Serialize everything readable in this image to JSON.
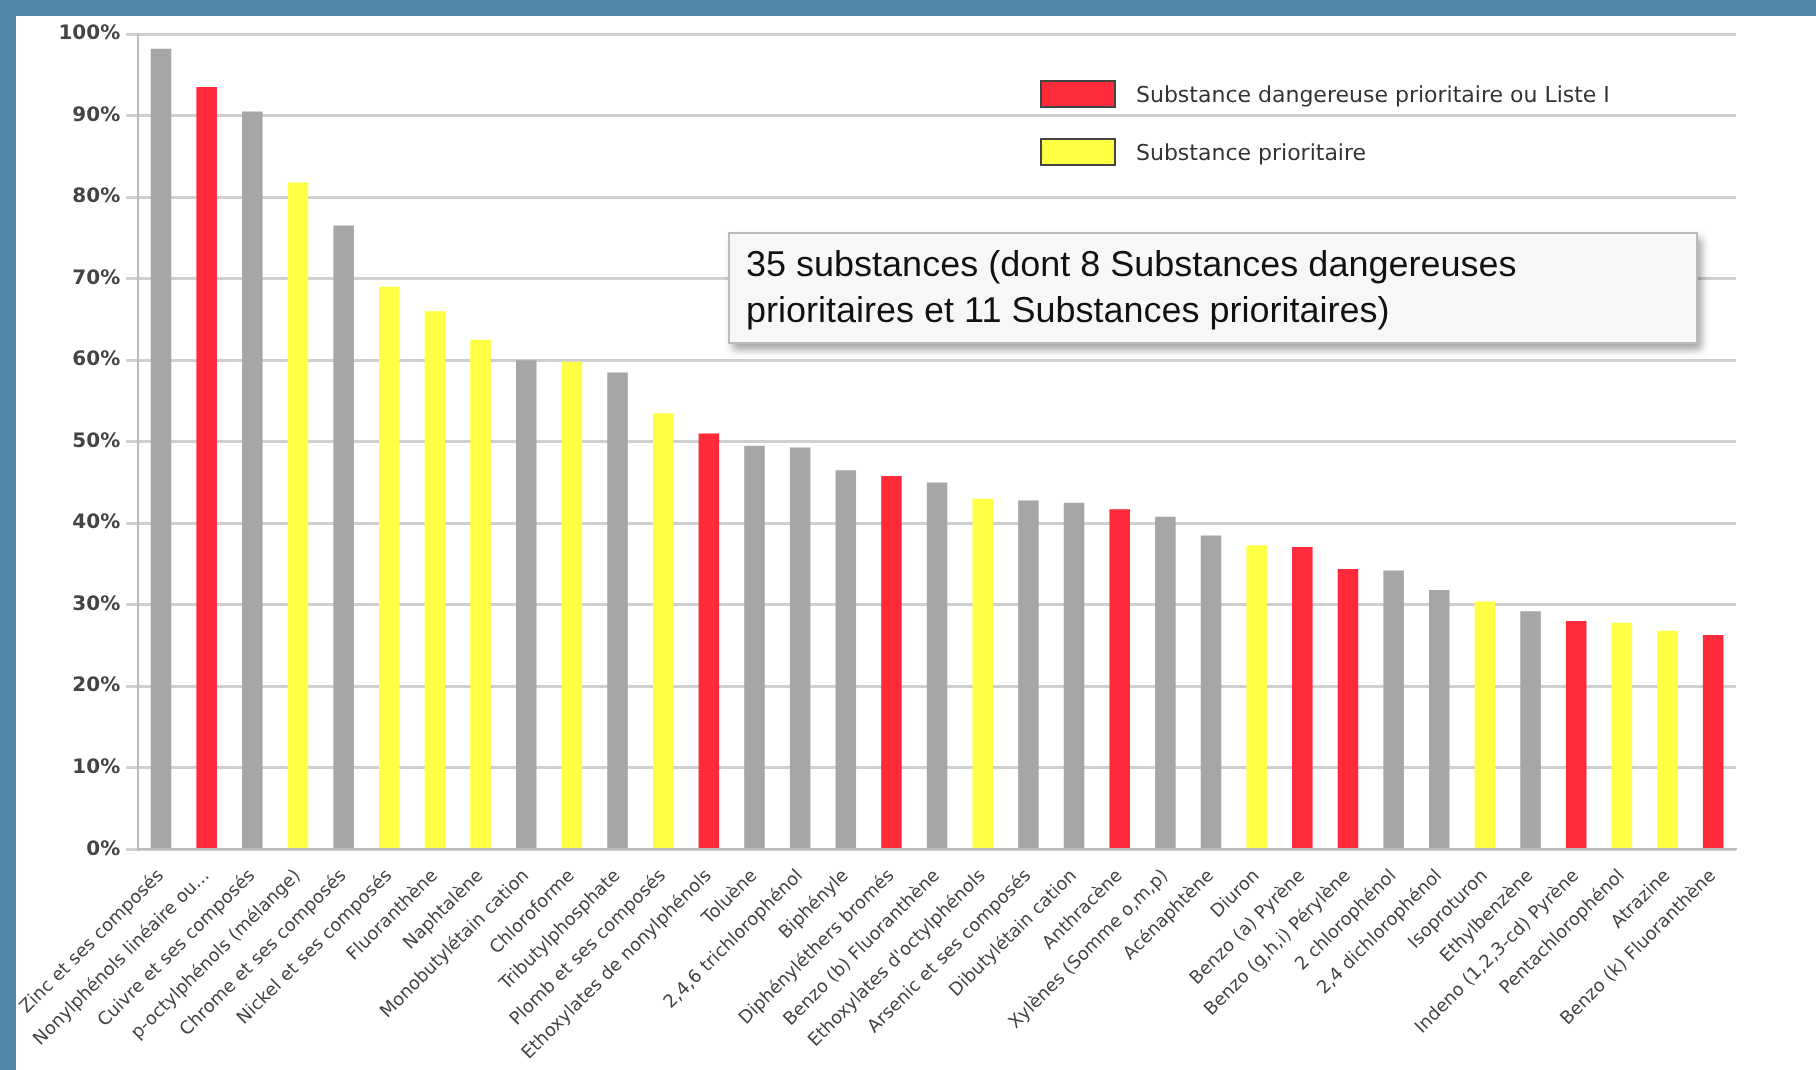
{
  "chart_data": {
    "type": "bar",
    "categories": [
      "Zinc et ses composés",
      "Nonylphénols linéaire ou...",
      "Cuivre et ses composés",
      "p-octylphénols (mélange)",
      "Chrome et ses composés",
      "Nickel et ses composés",
      "Fluoranthène",
      "Naphtalène",
      "Monobutylétain cation",
      "Chloroforme",
      "Tributylphosphate",
      "Plomb et ses composés",
      "Ethoxylates de nonylphénols",
      "Toluène",
      "2,4,6 trichlorophénol",
      "Biphényle",
      "Diphényléthers bromés",
      "Benzo (b) Fluoranthène",
      "Ethoxylates d'octylphénols",
      "Arsenic et ses composés",
      "Dibutylétain cation",
      "Anthracène",
      "Xylènes (Somme o,m,p)",
      "Acénaphtène",
      "Diuron",
      "Benzo (a) Pyrène",
      "Benzo (g,h,i) Pérylène",
      "2 chlorophénol",
      "2,4 dichlorophénol",
      "Isoproturon",
      "Ethylbenzène",
      "Indeno (1,2,3-cd) Pyrène",
      "Pentachlorophénol",
      "Atrazine",
      "Benzo (k) Fluoranthène"
    ],
    "series": [
      {
        "color": "#a6a6a6",
        "values": [
          98.2,
          null,
          90.5,
          null,
          76.5,
          null,
          null,
          null,
          60,
          null,
          58.5,
          null,
          null,
          49.5,
          49.3,
          46.5,
          null,
          45,
          null,
          42.8,
          42.5,
          null,
          40.8,
          38.5,
          null,
          null,
          null,
          34.2,
          31.8,
          null,
          29.2,
          null,
          null,
          null,
          null
        ]
      },
      {
        "name": "Substance dangereuse prioritaire ou Liste I",
        "color": "#ff2a3a",
        "values": [
          null,
          93.5,
          null,
          null,
          null,
          null,
          null,
          null,
          null,
          null,
          null,
          null,
          51,
          null,
          null,
          null,
          45.8,
          null,
          null,
          null,
          null,
          41.7,
          null,
          null,
          null,
          37.1,
          34.4,
          null,
          null,
          null,
          null,
          28,
          null,
          null,
          26.3
        ]
      },
      {
        "name": "Substance prioritaire",
        "color": "#ffff44",
        "values": [
          null,
          null,
          null,
          81.8,
          null,
          69,
          66,
          62.5,
          null,
          59.8,
          null,
          53.5,
          null,
          null,
          null,
          null,
          null,
          null,
          43,
          null,
          null,
          null,
          null,
          null,
          37.3,
          null,
          null,
          null,
          null,
          30.4,
          null,
          null,
          27.8,
          26.8,
          null
        ]
      }
    ],
    "ylim": [
      0,
      100
    ],
    "yticks": [
      {
        "value": 0,
        "label": "0%"
      },
      {
        "value": 10,
        "label": "10%"
      },
      {
        "value": 20,
        "label": "20%"
      },
      {
        "value": 30,
        "label": "30%"
      },
      {
        "value": 40,
        "label": "40%"
      },
      {
        "value": 50,
        "label": "50%"
      },
      {
        "value": 60,
        "label": "60%"
      },
      {
        "value": 70,
        "label": "70%"
      },
      {
        "value": 80,
        "label": "80%"
      },
      {
        "value": 90,
        "label": "90%"
      },
      {
        "value": 100,
        "label": "100%"
      }
    ],
    "grid": "y",
    "legend": "top right",
    "annotations": [
      "35 substances (dont 8 Substances dangereuses prioritaires et 11 Substances prioritaires)"
    ]
  }
}
